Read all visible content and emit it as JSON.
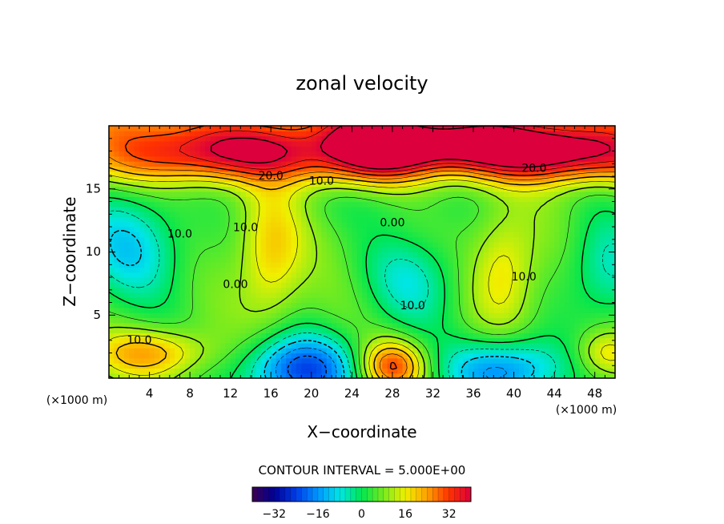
{
  "chart_data": {
    "type": "heatmap",
    "title": "zonal velocity",
    "xlabel": "X−coordinate",
    "ylabel": "Z−coordinate",
    "x_unit": "(×1000 m)",
    "y_unit": "(×1000 m)",
    "xlim": [
      0,
      50
    ],
    "ylim": [
      0,
      20
    ],
    "x_ticks": [
      4,
      8,
      12,
      16,
      20,
      24,
      28,
      32,
      36,
      40,
      44,
      48
    ],
    "x_tick_labels": [
      "4",
      "8",
      "12",
      "16",
      "20",
      "24",
      "28",
      "32",
      "36",
      "40",
      "44",
      "48"
    ],
    "y_ticks": [
      5,
      10,
      15
    ],
    "y_tick_labels": [
      "5",
      "10",
      "15"
    ],
    "contour_interval_text": "CONTOUR INTERVAL = 5.000E+00",
    "contour_interval": 5,
    "contour_labels": [
      {
        "text": "20.0",
        "x": 16,
        "y": 16.0
      },
      {
        "text": "20.0",
        "x": 42,
        "y": 16.6
      },
      {
        "text": "10.0",
        "x": 21,
        "y": 15.6
      },
      {
        "text": "0.00",
        "x": 28,
        "y": 12.3
      },
      {
        "text": "10.0",
        "x": 7,
        "y": 11.4
      },
      {
        "text": "10.0",
        "x": 13.5,
        "y": 11.9
      },
      {
        "text": "0.00",
        "x": 12.5,
        "y": 7.4
      },
      {
        "text": "10.0",
        "x": 30,
        "y": 5.7
      },
      {
        "text": "10.0",
        "x": 41,
        "y": 8.0
      },
      {
        "text": "10.0",
        "x": 3,
        "y": 3.0
      }
    ],
    "colorbar": {
      "range": [
        -40,
        40
      ],
      "tick_values": [
        -32,
        -16,
        0,
        16,
        32
      ],
      "tick_labels": [
        "−32",
        "−16",
        "0",
        "16",
        "32"
      ]
    },
    "features": [
      {
        "x": 27,
        "z": 18.5,
        "value": 36,
        "sx": 3.5,
        "sz": 1.6
      },
      {
        "x": 13,
        "z": 18.0,
        "value": 26,
        "sx": 7,
        "sz": 1.5
      },
      {
        "x": 45,
        "z": 18.0,
        "value": 30,
        "sx": 6,
        "sz": 1.5
      },
      {
        "x": 34,
        "z": 18.5,
        "value": 27,
        "sx": 5,
        "sz": 1.3
      },
      {
        "x": 2,
        "z": 10.5,
        "value": -18,
        "sx": 4,
        "sz": 3.2
      },
      {
        "x": 16,
        "z": 10.0,
        "value": 17,
        "sx": 2.2,
        "sz": 3.6
      },
      {
        "x": 30,
        "z": 7.8,
        "value": -14,
        "sx": 3.5,
        "sz": 2.8
      },
      {
        "x": 39,
        "z": 8.5,
        "value": 15,
        "sx": 2.2,
        "sz": 3.2
      },
      {
        "x": 49,
        "z": 8.5,
        "value": -14,
        "sx": 2.8,
        "sz": 3.2
      },
      {
        "x": 19,
        "z": 0.6,
        "value": -34,
        "sx": 4,
        "sz": 2.0
      },
      {
        "x": 39,
        "z": 0.6,
        "value": -28,
        "sx": 4,
        "sz": 1.8
      },
      {
        "x": 28,
        "z": 1.0,
        "value": 30,
        "sx": 2.2,
        "sz": 1.4
      },
      {
        "x": 4,
        "z": 2.0,
        "value": 20,
        "sx": 4,
        "sz": 1.3
      },
      {
        "x": 49,
        "z": 2.0,
        "value": 14,
        "sx": 2,
        "sz": 1.3
      },
      {
        "x": 28,
        "z": 13.5,
        "value": -3,
        "sx": 6,
        "sz": 1.2
      }
    ]
  }
}
